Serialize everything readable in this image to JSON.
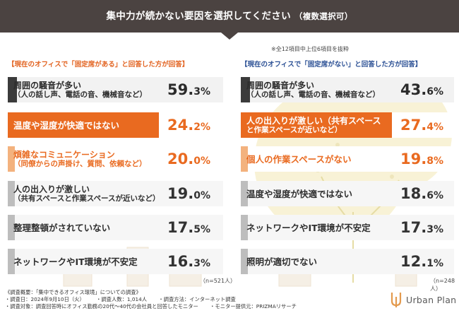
{
  "header": {
    "title": "集中力が続かない要因を選択してください",
    "subtitle": "（複数選択可）"
  },
  "note": "※全12項目中上位6項目を抜粋",
  "chart_data": [
    {
      "type": "bar",
      "title": "【現在のオフィスで「固定席がある」と回答した方が回答】",
      "n": "（n=521人）",
      "items": [
        {
          "l1": "周囲の騒音が多い",
          "l2": "（人の話し声、電話の音、機械音など）",
          "big": "59.",
          "small": "3%",
          "value": 59.3
        },
        {
          "l1": "温度や湿度が快適ではない",
          "l2": "",
          "big": "24.",
          "small": "2%",
          "value": 24.2
        },
        {
          "l1": "煩雑なコミュニケーション",
          "l2": "（同僚からの声掛け、質問、依頼など）",
          "big": "20.",
          "small": "0%",
          "value": 20.0
        },
        {
          "l1": "人の出入りが激しい",
          "l2": "（共有スペースと作業スペースが近いなど）",
          "big": "19.",
          "small": "0%",
          "value": 19.0
        },
        {
          "l1": "整理整頓がされていない",
          "l2": "",
          "big": "17.",
          "small": "5%",
          "value": 17.5
        },
        {
          "l1": "ネットワークやIT環境が不安定",
          "l2": "",
          "big": "16.",
          "small": "3%",
          "value": 16.3
        }
      ]
    },
    {
      "type": "bar",
      "title": "【現在のオフィスで「固定席がない」と回答した方が回答】",
      "n": "（n=248人）",
      "items": [
        {
          "l1": "周囲の騒音が多い",
          "l2": "（人の話し声、電話の音、機械音など）",
          "big": "43.",
          "small": "6%",
          "value": 43.6
        },
        {
          "l1": "人の出入りが激しい（共有スペース",
          "l2": "と作業スペースが近いなど）",
          "big": "27.",
          "small": "4%",
          "value": 27.4
        },
        {
          "l1": "個人の作業スペースがない",
          "l2": "",
          "big": "19.",
          "small": "8%",
          "value": 19.8
        },
        {
          "l1": "温度や湿度が快適ではない",
          "l2": "",
          "big": "18.",
          "small": "6%",
          "value": 18.6
        },
        {
          "l1": "ネットワークやIT環境が不安定",
          "l2": "",
          "big": "17.",
          "small": "3%",
          "value": 17.3
        },
        {
          "l1": "照明が適切でない",
          "l2": "",
          "big": "12.",
          "small": "1%",
          "value": 12.1
        }
      ]
    }
  ],
  "footer": {
    "line1": "《調査概要：「集中できるオフィス環境」についての調査》",
    "line2a": "・調査日：2024年9月10日（火）",
    "line2b": "・調査人数：1,014人",
    "line2c": "・調査方法：インターネット調査",
    "line3a": "・調査対象：調査回答時にオフィス勤務の20代〜40代の会社員と回答したモニター",
    "line3b": "・モニター提供元：PRIZMAリサーチ"
  },
  "logo": {
    "text": "Urban Plan"
  },
  "colors": {
    "header": "#4b4341",
    "orange": "#e96a20",
    "light_orange": "#f3b27e",
    "navy": "#2a4f94",
    "gray": "#bdbdbd"
  }
}
